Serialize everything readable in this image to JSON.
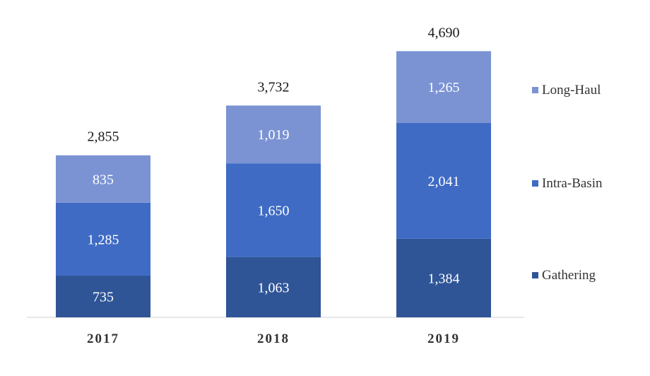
{
  "chart_data": {
    "type": "bar",
    "stacked": true,
    "categories": [
      "2017",
      "2018",
      "2019"
    ],
    "series": [
      {
        "name": "Gathering",
        "values": [
          735,
          1063,
          1384
        ],
        "labels": [
          "735",
          "1,063",
          "1,384"
        ],
        "color": "#2f5597"
      },
      {
        "name": "Intra-Basin",
        "values": [
          1285,
          1650,
          2041
        ],
        "labels": [
          "1,285",
          "1,650",
          "2,041"
        ],
        "color": "#3f6bc4"
      },
      {
        "name": "Long-Haul",
        "values": [
          835,
          1019,
          1265
        ],
        "labels": [
          "835",
          "1,019",
          "1,265"
        ],
        "color": "#7b93d3"
      }
    ],
    "totals": [
      2855,
      3732,
      4690
    ],
    "total_labels": [
      "2,855",
      "3,732",
      "4,690"
    ],
    "title": "",
    "xlabel": "",
    "ylabel": "",
    "ylim": [
      0,
      5000
    ],
    "grid": false,
    "legend_position": "right"
  }
}
